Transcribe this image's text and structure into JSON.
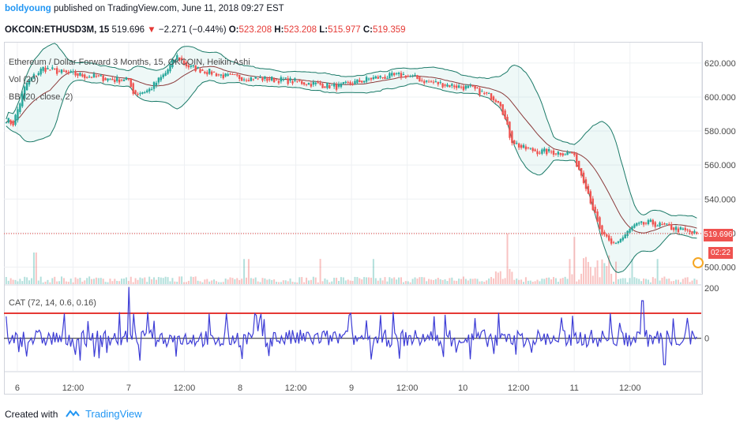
{
  "header": {
    "author": "boldyoung",
    "published": " published on TradingView.com, June 11, 2018 09:27 EST",
    "symbol": "OKCOIN:ETHUSD3M, 15",
    "last": "519.696",
    "change_arrow": "▼",
    "change": "−2.271 (−0.44%)",
    "o_label": "O:",
    "o": "523.208",
    "h_label": "H:",
    "h": "523.208",
    "l_label": "L:",
    "l": "515.977",
    "c_label": "C:",
    "c": "519.359"
  },
  "legend": {
    "title": "Ethereum / Dollar Forward 3 Months, 15, OKCOIN, Heikin Ashi",
    "vol": "Vol (20)",
    "bb": "BB (20, close, 2)",
    "cat": "CAT (72, 14, 0.6, 0.16)"
  },
  "badges": {
    "price": "519.696",
    "countdown": "02:22"
  },
  "footer": {
    "created": "Created with",
    "brand": "TradingView"
  },
  "colors": {
    "up": "#26a69a",
    "down": "#ef5350",
    "bb": "#1b7a68",
    "basis": "#8b3a3a",
    "cat": "#3d3dd6",
    "level": "#e53935"
  },
  "chart_data": [
    {
      "type": "candlestick",
      "title": "Ethereum / Dollar Forward 3 Months, 15, OKCOIN, Heikin Ashi",
      "ylim": [
        490,
        632
      ],
      "y_ticks": [
        "620.000",
        "600.000",
        "580.000",
        "560.000",
        "540.000",
        "520.000",
        "500.000"
      ],
      "y_tick_values": [
        620,
        600,
        580,
        560,
        540,
        520,
        500
      ],
      "x_ticks": [
        "6",
        "12:00",
        "7",
        "12:00",
        "8",
        "12:00",
        "9",
        "12:00",
        "10",
        "12:00",
        "11",
        "12:00"
      ],
      "x_tick_days": [
        0.12,
        0.62,
        1.12,
        1.62,
        2.12,
        2.62,
        3.12,
        3.62,
        4.12,
        4.62,
        5.12,
        5.62
      ],
      "xlim_days": [
        0,
        6.26
      ],
      "price_path": {
        "days": [
          0,
          0.08,
          0.2,
          0.35,
          0.55,
          0.8,
          1.0,
          1.1,
          1.17,
          1.3,
          1.45,
          1.55,
          1.65,
          2.0,
          2.5,
          3.0,
          3.3,
          3.6,
          3.8,
          4.2,
          4.45,
          4.55,
          4.65,
          4.8,
          5.1,
          5.22,
          5.35,
          5.45,
          5.55,
          5.65,
          5.8,
          6.0,
          6.2
        ],
        "close": [
          588,
          584,
          608,
          617,
          614,
          612,
          610,
          611,
          602,
          604,
          614,
          624,
          618,
          612,
          610,
          606,
          611,
          613,
          609,
          605,
          598,
          575,
          570,
          568,
          567,
          549,
          521,
          513,
          517,
          524,
          526,
          523,
          519.7
        ]
      },
      "last_price": 519.696,
      "volume_note": "Vol (20)"
    },
    {
      "type": "line",
      "title": "CAT (72, 14, 0.6, 0.16)",
      "ylim": [
        -130,
        210
      ],
      "y_ticks": [
        "200",
        "0"
      ],
      "y_tick_values": [
        200,
        0
      ],
      "upper_level": 100,
      "zero_line": 0
    }
  ]
}
